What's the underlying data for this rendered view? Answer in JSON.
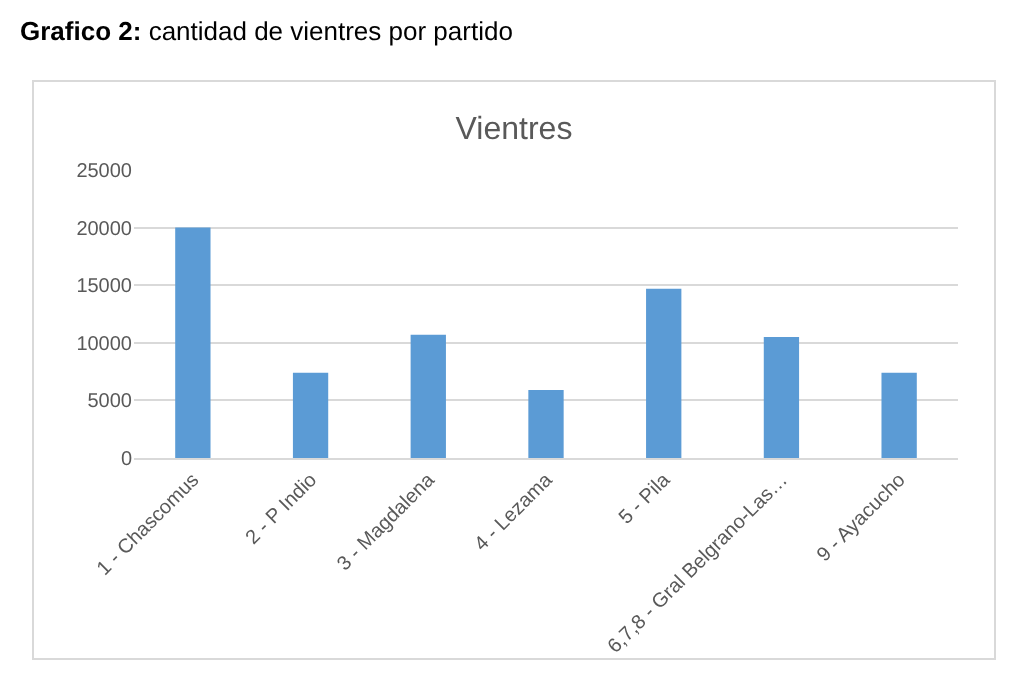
{
  "chart_data": {
    "type": "bar",
    "title": "Vientres",
    "annotations": [
      "Grafico 2:",
      "cantidad de vientres por partido"
    ],
    "categories": [
      "1 - Chascomus",
      "2 - P Indio",
      "3 - Magdalena",
      "4 - Lezama",
      "5 - Pila",
      "6,7,8 - Gral Belgrano-Las…",
      "9 - Ayacucho"
    ],
    "values": [
      20000,
      7400,
      10700,
      5900,
      14700,
      10500,
      7400
    ],
    "color": "#5b9bd5",
    "ylim": [
      0,
      25000
    ],
    "yticks": [
      0,
      5000,
      10000,
      15000,
      20000,
      25000
    ],
    "grid": "y",
    "legend": false
  }
}
